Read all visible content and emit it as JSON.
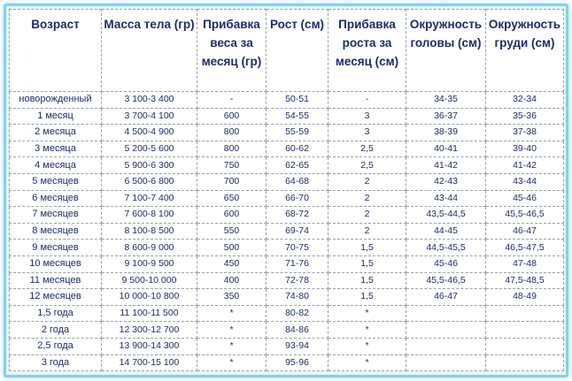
{
  "table": {
    "headers": [
      "Возраст",
      "Масса тела (гр)",
      "Прибавка веса за месяц (гр)",
      "Рост (см)",
      "Прибавка роста за месяц (см)",
      "Окружность головы (см)",
      "Окружность груди (см)"
    ],
    "rows": [
      [
        "новорожденный",
        "3 100-3 400",
        "-",
        "50-51",
        "-",
        "34-35",
        "32-34"
      ],
      [
        "1 месяц",
        "3 700-4 100",
        "600",
        "54-55",
        "3",
        "36-37",
        "35-36"
      ],
      [
        "2 месяца",
        "4 500-4 900",
        "800",
        "55-59",
        "3",
        "38-39",
        "37-38"
      ],
      [
        "3 месяца",
        "5 200-5 600",
        "800",
        "60-62",
        "2,5",
        "40-41",
        "39-40"
      ],
      [
        "4 месяца",
        "5 900-6 300",
        "750",
        "62-65",
        "2,5",
        "41-42",
        "41-42"
      ],
      [
        "5 месяцев",
        "6 500-6 800",
        "700",
        "64-68",
        "2",
        "42-43",
        "43-44"
      ],
      [
        "6 месяцев",
        "7 100-7 400",
        "650",
        "66-70",
        "2",
        "43-44",
        "45-46"
      ],
      [
        "7 месяцев",
        "7 600-8 100",
        "600",
        "68-72",
        "2",
        "43,5-44,5",
        "45,5-46,5"
      ],
      [
        "8 месяцев",
        "8 100-8 500",
        "550",
        "69-74",
        "2",
        "44-45",
        "46-47"
      ],
      [
        "9 месяцев",
        "8 600-9 000",
        "500",
        "70-75",
        "1,5",
        "44,5-45,5",
        "46,5-47,5"
      ],
      [
        "10 месяцев",
        "9 100-9 500",
        "450",
        "71-76",
        "1,5",
        "45-46",
        "47-48"
      ],
      [
        "11 месяцев",
        "9 500-10 000",
        "400",
        "72-78",
        "1,5",
        "45,5-46,5",
        "47,5-48,5"
      ],
      [
        "12 месяцев",
        "10 000-10 800",
        "350",
        "74-80",
        "1,5",
        "46-47",
        "48-49"
      ],
      [
        "1,5 года",
        "11 100-11 500",
        "*",
        "80-82",
        "*",
        "",
        ""
      ],
      [
        "2 года",
        "12 300-12 700",
        "*",
        "84-86",
        "*",
        "",
        ""
      ],
      [
        "2,5 года",
        "13 900-14 300",
        "*",
        "93-94",
        "*",
        "",
        ""
      ],
      [
        "3 года",
        "14 700-15 100",
        "*",
        "95-96",
        "*",
        "",
        ""
      ]
    ]
  },
  "colors": {
    "text": "#1f2a6b",
    "frame": "#7fd3e6",
    "grid": "#9aa0a6"
  }
}
